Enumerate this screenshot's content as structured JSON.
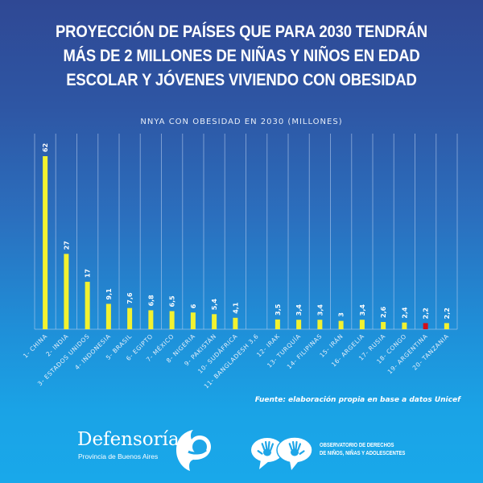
{
  "header": {
    "title_lines": [
      "PROYECCIÓN DE PAÍSES QUE PARA 2030 TENDRÁN",
      "MÁS DE 2 MILLONES DE NIÑAS Y NIÑOS EN EDAD",
      "ESCOLAR Y JÓVENES VIVIENDO CON OBESIDAD"
    ]
  },
  "chart_data": {
    "type": "bar",
    "orientation": "vertical",
    "title": "NNYA CON OBESIDAD EN 2030 (MILLONES)",
    "xlabel": "",
    "ylabel": "",
    "ylim": [
      0,
      62
    ],
    "grid": "vertical",
    "categories": [
      "1- CHINA",
      "2- INDIA",
      "3- ESTADOS UNIDOS",
      "4- INDONESIA",
      "5- BRASIL",
      "6- EGIPTO",
      "7- MÉXICO",
      "8- NIGERIA",
      "9- PAKISTÁN",
      "10- SUDÁFRICA",
      "11- BANGLADESH 3,6",
      "12- IRAK",
      "13- TURQUÍA",
      "14- FILIPINAS",
      "15- IRÁN",
      "16- ARGELIA",
      "17- RUSIA",
      "18- CONGO",
      "19- ARGENTINA",
      "20- TANZANIA"
    ],
    "values": [
      62,
      27,
      17,
      9.1,
      7.6,
      6.8,
      6.5,
      6,
      5.4,
      4.1,
      null,
      3.5,
      3.4,
      3.4,
      3,
      3.4,
      2.6,
      2.4,
      2.2,
      2.2
    ],
    "value_labels": [
      "62",
      "27",
      "17",
      "9,1",
      "7,6",
      "6,8",
      "6,5",
      "6",
      "5,4",
      "4,1",
      "",
      "3,5",
      "3,4",
      "3,4",
      "3",
      "3,4",
      "2,6",
      "2,4",
      "2,2",
      "2,2"
    ],
    "notes": "Bangladesh value 3,6 shown only in its category label; no bar drawn",
    "bar_color": "#f2f230",
    "highlight_color": "#d4101a",
    "highlight_category": "19- ARGENTINA"
  },
  "source": "Fuente: elaboración propia en base a datos Unicef",
  "footer": {
    "defensoria_name": "Defensoría",
    "defensoria_sub": "Provincia de Buenos Aires",
    "observatorio_line1": "OBSERVATORIO DE DERECHOS",
    "observatorio_line2": "DE NIÑOS, NIÑAS Y ADOLESCENTES"
  }
}
